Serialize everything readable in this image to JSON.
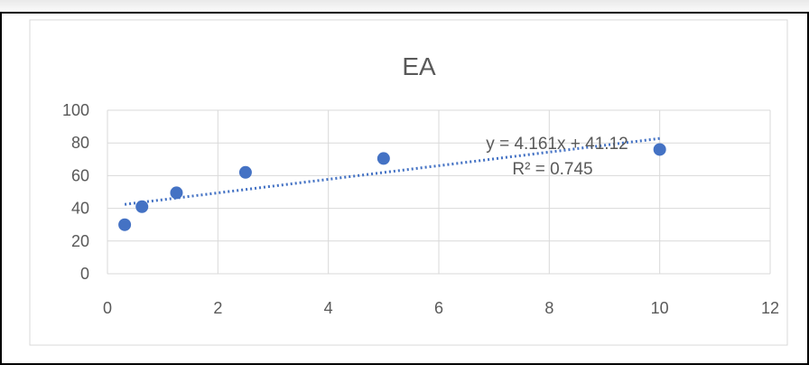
{
  "chart_data": {
    "type": "scatter",
    "title": "EA",
    "xlabel": "",
    "ylabel": "",
    "xlim": [
      0,
      12
    ],
    "ylim": [
      0,
      100
    ],
    "x_ticks": [
      "0",
      "2",
      "4",
      "6",
      "8",
      "10",
      "12"
    ],
    "y_ticks": [
      "0",
      "20",
      "40",
      "60",
      "80",
      "100"
    ],
    "grid": true,
    "legend": "none",
    "marker_color": "#4472C4",
    "points": [
      {
        "x": 0.3125,
        "y": 30
      },
      {
        "x": 0.625,
        "y": 41
      },
      {
        "x": 1.25,
        "y": 49.5
      },
      {
        "x": 2.5,
        "y": 62
      },
      {
        "x": 5,
        "y": 70.5
      },
      {
        "x": 10,
        "y": 76
      }
    ],
    "trendline": {
      "type": "linear",
      "slope": 4.161,
      "intercept": 41.12,
      "x_start": 0.3125,
      "x_end": 10,
      "color": "#4472C4",
      "equation": "y = 4.161x + 41.12",
      "r_squared": "R² = 0.745"
    }
  }
}
